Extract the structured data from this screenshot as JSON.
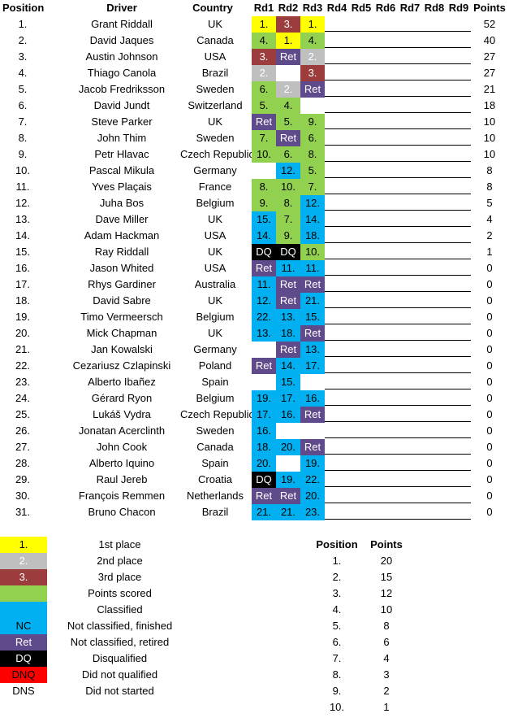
{
  "headers": {
    "position": "Position",
    "driver": "Driver",
    "country": "Country",
    "rounds": [
      "Rd1",
      "Rd2",
      "Rd3",
      "Rd4",
      "Rd5",
      "Rd6",
      "Rd7",
      "Rd8",
      "Rd9"
    ],
    "points": "Points"
  },
  "colors": {
    "first": "#ffff00",
    "second": "#bfbfbf",
    "third": "#9c3c3c",
    "points": "#92d050",
    "classified": "#00b0f0",
    "retired": "#5f4b8b",
    "dq": "#000000",
    "dnq": "#ff0000"
  },
  "rows": [
    {
      "pos": "1.",
      "driver": "Grant Riddall",
      "country": "UK",
      "results": [
        {
          "t": "1.",
          "c": "first"
        },
        {
          "t": "3.",
          "c": "third"
        },
        {
          "t": "1.",
          "c": "first"
        }
      ],
      "points": "52"
    },
    {
      "pos": "2.",
      "driver": "David Jaques",
      "country": "Canada",
      "results": [
        {
          "t": "4.",
          "c": "points"
        },
        {
          "t": "1.",
          "c": "first"
        },
        {
          "t": "4.",
          "c": "points"
        }
      ],
      "points": "40"
    },
    {
      "pos": "3.",
      "driver": "Austin Johnson",
      "country": "USA",
      "results": [
        {
          "t": "3.",
          "c": "third"
        },
        {
          "t": "Ret",
          "c": "retired"
        },
        {
          "t": "2.",
          "c": "second"
        }
      ],
      "points": "27"
    },
    {
      "pos": "4.",
      "driver": "Thiago Canola",
      "country": "Brazil",
      "results": [
        {
          "t": "2.",
          "c": "second"
        },
        {
          "t": "",
          "c": ""
        },
        {
          "t": "3.",
          "c": "third"
        }
      ],
      "points": "27"
    },
    {
      "pos": "5.",
      "driver": "Jacob Fredriksson",
      "country": "Sweden",
      "results": [
        {
          "t": "6.",
          "c": "points"
        },
        {
          "t": "2.",
          "c": "second"
        },
        {
          "t": "Ret",
          "c": "retired"
        }
      ],
      "points": "21"
    },
    {
      "pos": "6.",
      "driver": "David Jundt",
      "country": "Switzerland",
      "results": [
        {
          "t": "5.",
          "c": "points"
        },
        {
          "t": "4.",
          "c": "points"
        },
        {
          "t": "",
          "c": ""
        }
      ],
      "points": "18"
    },
    {
      "pos": "7.",
      "driver": "Steve Parker",
      "country": "UK",
      "results": [
        {
          "t": "Ret",
          "c": "retired"
        },
        {
          "t": "5.",
          "c": "points"
        },
        {
          "t": "9.",
          "c": "points"
        }
      ],
      "points": "10"
    },
    {
      "pos": "8.",
      "driver": "John Thim",
      "country": "Sweden",
      "results": [
        {
          "t": "7.",
          "c": "points"
        },
        {
          "t": "Ret",
          "c": "retired"
        },
        {
          "t": "6.",
          "c": "points"
        }
      ],
      "points": "10"
    },
    {
      "pos": "9.",
      "driver": "Petr Hlavac",
      "country": "Czech Republic",
      "results": [
        {
          "t": "10.",
          "c": "points"
        },
        {
          "t": "6.",
          "c": "points"
        },
        {
          "t": "8.",
          "c": "points"
        }
      ],
      "points": "10"
    },
    {
      "pos": "10.",
      "driver": "Pascal Mikula",
      "country": "Germany",
      "results": [
        {
          "t": "",
          "c": ""
        },
        {
          "t": "12.",
          "c": "classified"
        },
        {
          "t": "5.",
          "c": "points"
        }
      ],
      "points": "8"
    },
    {
      "pos": "11.",
      "driver": "Yves Plaçais",
      "country": "France",
      "results": [
        {
          "t": "8.",
          "c": "points"
        },
        {
          "t": "10.",
          "c": "points"
        },
        {
          "t": "7.",
          "c": "points"
        }
      ],
      "points": "8"
    },
    {
      "pos": "12.",
      "driver": "Juha Bos",
      "country": "Belgium",
      "results": [
        {
          "t": "9.",
          "c": "points"
        },
        {
          "t": "8.",
          "c": "points"
        },
        {
          "t": "12.",
          "c": "classified"
        }
      ],
      "points": "5"
    },
    {
      "pos": "13.",
      "driver": "Dave Miller",
      "country": "UK",
      "results": [
        {
          "t": "15.",
          "c": "classified"
        },
        {
          "t": "7.",
          "c": "points"
        },
        {
          "t": "14.",
          "c": "classified"
        }
      ],
      "points": "4"
    },
    {
      "pos": "14.",
      "driver": "Adam Hackman",
      "country": "USA",
      "results": [
        {
          "t": "14.",
          "c": "classified"
        },
        {
          "t": "9.",
          "c": "points"
        },
        {
          "t": "18.",
          "c": "classified"
        }
      ],
      "points": "2"
    },
    {
      "pos": "15.",
      "driver": "Ray Riddall",
      "country": "UK",
      "results": [
        {
          "t": "DQ",
          "c": "dq"
        },
        {
          "t": "DQ",
          "c": "dq"
        },
        {
          "t": "10.",
          "c": "points"
        }
      ],
      "points": "1"
    },
    {
      "pos": "16.",
      "driver": "Jason Whited",
      "country": "USA",
      "results": [
        {
          "t": "Ret",
          "c": "retired"
        },
        {
          "t": "11.",
          "c": "classified"
        },
        {
          "t": "11.",
          "c": "classified"
        }
      ],
      "points": "0"
    },
    {
      "pos": "17.",
      "driver": "Rhys Gardiner",
      "country": "Australia",
      "results": [
        {
          "t": "11.",
          "c": "classified"
        },
        {
          "t": "Ret",
          "c": "retired"
        },
        {
          "t": "Ret",
          "c": "retired"
        }
      ],
      "points": "0"
    },
    {
      "pos": "18.",
      "driver": "David Sabre",
      "country": "UK",
      "results": [
        {
          "t": "12.",
          "c": "classified"
        },
        {
          "t": "Ret",
          "c": "retired"
        },
        {
          "t": "21.",
          "c": "classified"
        }
      ],
      "points": "0"
    },
    {
      "pos": "19.",
      "driver": "Timo Vermeersch",
      "country": "Belgium",
      "results": [
        {
          "t": "22.",
          "c": "classified"
        },
        {
          "t": "13.",
          "c": "classified"
        },
        {
          "t": "15.",
          "c": "classified"
        }
      ],
      "points": "0"
    },
    {
      "pos": "20.",
      "driver": "Mick Chapman",
      "country": "UK",
      "results": [
        {
          "t": "13.",
          "c": "classified"
        },
        {
          "t": "18.",
          "c": "classified"
        },
        {
          "t": "Ret",
          "c": "retired"
        }
      ],
      "points": "0"
    },
    {
      "pos": "21.",
      "driver": "Jan Kowalski",
      "country": "Germany",
      "results": [
        {
          "t": "",
          "c": ""
        },
        {
          "t": "Ret",
          "c": "retired"
        },
        {
          "t": "13.",
          "c": "classified"
        }
      ],
      "points": "0"
    },
    {
      "pos": "22.",
      "driver": "Cezariusz Czlapinski",
      "country": "Poland",
      "results": [
        {
          "t": "Ret",
          "c": "retired"
        },
        {
          "t": "14.",
          "c": "classified"
        },
        {
          "t": "17.",
          "c": "classified"
        }
      ],
      "points": "0"
    },
    {
      "pos": "23.",
      "driver": "Alberto Ibañez",
      "country": "Spain",
      "results": [
        {
          "t": "",
          "c": ""
        },
        {
          "t": "15.",
          "c": "classified"
        },
        {
          "t": "",
          "c": ""
        }
      ],
      "points": "0"
    },
    {
      "pos": "24.",
      "driver": "Gérard Ryon",
      "country": "Belgium",
      "results": [
        {
          "t": "19.",
          "c": "classified"
        },
        {
          "t": "17.",
          "c": "classified"
        },
        {
          "t": "16.",
          "c": "classified"
        }
      ],
      "points": "0"
    },
    {
      "pos": "25.",
      "driver": "Lukáš Vydra",
      "country": "Czech Republic",
      "results": [
        {
          "t": "17.",
          "c": "classified"
        },
        {
          "t": "16.",
          "c": "classified"
        },
        {
          "t": "Ret",
          "c": "retired"
        }
      ],
      "points": "0"
    },
    {
      "pos": "26.",
      "driver": "Jonatan Acerclinth",
      "country": "Sweden",
      "results": [
        {
          "t": "16.",
          "c": "classified"
        },
        {
          "t": "",
          "c": ""
        },
        {
          "t": "",
          "c": ""
        }
      ],
      "points": "0"
    },
    {
      "pos": "27.",
      "driver": "John Cook",
      "country": "Canada",
      "results": [
        {
          "t": "18.",
          "c": "classified"
        },
        {
          "t": "20.",
          "c": "classified"
        },
        {
          "t": "Ret",
          "c": "retired"
        }
      ],
      "points": "0"
    },
    {
      "pos": "28.",
      "driver": "Alberto Iquino",
      "country": "Spain",
      "results": [
        {
          "t": "20.",
          "c": "classified"
        },
        {
          "t": "",
          "c": ""
        },
        {
          "t": "19.",
          "c": "classified"
        }
      ],
      "points": "0"
    },
    {
      "pos": "29.",
      "driver": "Raul Jereb",
      "country": "Croatia",
      "results": [
        {
          "t": "DQ",
          "c": "dq"
        },
        {
          "t": "19.",
          "c": "classified"
        },
        {
          "t": "22.",
          "c": "classified"
        }
      ],
      "points": "0"
    },
    {
      "pos": "30.",
      "driver": "François Remmen",
      "country": "Netherlands",
      "results": [
        {
          "t": "Ret",
          "c": "retired"
        },
        {
          "t": "Ret",
          "c": "retired"
        },
        {
          "t": "20.",
          "c": "classified"
        }
      ],
      "points": "0"
    },
    {
      "pos": "31.",
      "driver": "Bruno Chacon",
      "country": "Brazil",
      "results": [
        {
          "t": "21.",
          "c": "classified"
        },
        {
          "t": "21.",
          "c": "classified"
        },
        {
          "t": "23.",
          "c": "classified"
        }
      ],
      "points": "0"
    }
  ],
  "legend": [
    {
      "sample": "1.",
      "color": "first",
      "text_color": "#000000",
      "label": "1st place"
    },
    {
      "sample": "2.",
      "color": "second",
      "text_color": "#ffffff",
      "label": "2nd place"
    },
    {
      "sample": "3.",
      "color": "third",
      "text_color": "#ffffff",
      "label": "3rd place"
    },
    {
      "sample": "",
      "color": "points",
      "text_color": "#000000",
      "label": "Points scored"
    },
    {
      "sample": "",
      "color": "classified",
      "text_color": "#000000",
      "label": "Classified"
    },
    {
      "sample": "NC",
      "color": "classified",
      "text_color": "#000000",
      "label": "Not classified, finished"
    },
    {
      "sample": "Ret",
      "color": "retired",
      "text_color": "#ffffff",
      "label": "Not classified, retired"
    },
    {
      "sample": "DQ",
      "color": "dq",
      "text_color": "#ffffff",
      "label": "Disqualified"
    },
    {
      "sample": "DNQ",
      "color": "dnq",
      "text_color": "#000000",
      "label": "Did not qualified"
    },
    {
      "sample": "DNS",
      "color": "",
      "text_color": "#000000",
      "label": "Did not started"
    }
  ],
  "points_table": {
    "headers": {
      "position": "Position",
      "points": "Points"
    },
    "rows": [
      {
        "pos": "1.",
        "pts": "20"
      },
      {
        "pos": "2.",
        "pts": "15"
      },
      {
        "pos": "3.",
        "pts": "12"
      },
      {
        "pos": "4.",
        "pts": "10"
      },
      {
        "pos": "5.",
        "pts": "8"
      },
      {
        "pos": "6.",
        "pts": "6"
      },
      {
        "pos": "7.",
        "pts": "4"
      },
      {
        "pos": "8.",
        "pts": "3"
      },
      {
        "pos": "9.",
        "pts": "2"
      },
      {
        "pos": "10.",
        "pts": "1"
      }
    ]
  }
}
